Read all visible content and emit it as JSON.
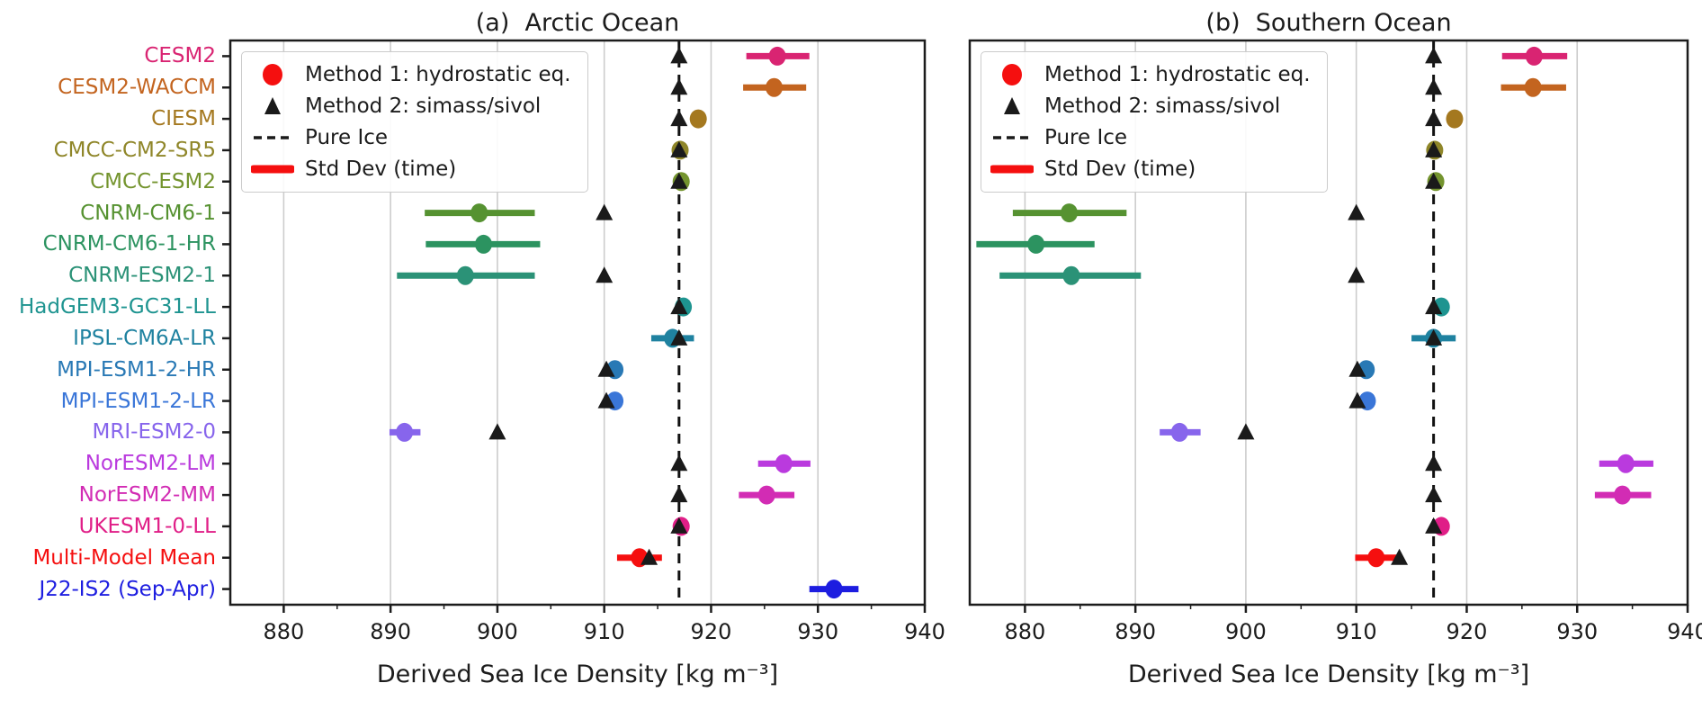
{
  "chart_data": {
    "type": "scatter",
    "xlabel": "Derived Sea Ice Density [kg m⁻³]",
    "xlim": [
      875,
      940
    ],
    "xticks": [
      880,
      890,
      900,
      910,
      920,
      930,
      940
    ],
    "minor_ticks": [
      885,
      895,
      905,
      915,
      925,
      935
    ],
    "grid": true,
    "grid_color": "#cccccc",
    "pure_ice_value": 917,
    "pure_ice_line_color": "#111111",
    "legend_position": "upper left",
    "legend": {
      "items": [
        {
          "marker": "circle",
          "color": "#f50f0f",
          "label": "Method 1: hydrostatic eq."
        },
        {
          "marker": "triangle",
          "color": "#1a1a1a",
          "label": "Method 2: simass/sivol"
        },
        {
          "marker": "dashed-line",
          "color": "#1a1a1a",
          "label": "Pure Ice"
        },
        {
          "marker": "thick-line",
          "color": "#f50f0f",
          "label": "Std Dev (time)"
        }
      ]
    },
    "panels": [
      {
        "id": "arctic",
        "title": "(a)  Arctic Ocean"
      },
      {
        "id": "southern",
        "title": "(b)  Southern Ocean"
      }
    ],
    "models": [
      {
        "name": "CESM2",
        "color": "#d92472",
        "arctic": {
          "method1": 926.2,
          "std": [
            923.3,
            929.2
          ],
          "method2": 917
        },
        "southern": {
          "method1": 926.1,
          "std": [
            923.2,
            929.1
          ],
          "method2": 917
        }
      },
      {
        "name": "CESM2-WACCM",
        "color": "#c3641f",
        "arctic": {
          "method1": 925.9,
          "std": [
            923.0,
            928.9
          ],
          "method2": 917
        },
        "southern": {
          "method1": 926.0,
          "std": [
            923.1,
            929.0
          ],
          "method2": 917
        }
      },
      {
        "name": "CIESM",
        "color": "#a4781f",
        "arctic": {
          "method1": 918.8,
          "std": null,
          "method2": 917
        },
        "southern": {
          "method1": 918.9,
          "std": null,
          "method2": 917
        }
      },
      {
        "name": "CMCC-CM2-SR5",
        "color": "#8f8629",
        "arctic": {
          "method1": 917.1,
          "std": null,
          "method2": 917
        },
        "southern": {
          "method1": 917.1,
          "std": null,
          "method2": 917
        }
      },
      {
        "name": "CMCC-ESM2",
        "color": "#74942e",
        "arctic": {
          "method1": 917.2,
          "std": null,
          "method2": 917
        },
        "southern": {
          "method1": 917.2,
          "std": null,
          "method2": 917
        }
      },
      {
        "name": "CNRM-CM6-1",
        "color": "#569231",
        "arctic": {
          "method1": 898.3,
          "std": [
            893.2,
            903.5
          ],
          "method2": 910
        },
        "southern": {
          "method1": 884.0,
          "std": [
            878.9,
            889.2
          ],
          "method2": 910
        }
      },
      {
        "name": "CNRM-CM6-1-HR",
        "color": "#2c9360",
        "arctic": {
          "method1": 898.7,
          "std": [
            893.3,
            904.0
          ],
          "method2": null
        },
        "southern": {
          "method1": 881.0,
          "std": [
            875.6,
            886.3
          ],
          "method2": null
        }
      },
      {
        "name": "CNRM-ESM2-1",
        "color": "#2b9277",
        "arctic": {
          "method1": 897.0,
          "std": [
            890.6,
            903.5
          ],
          "method2": 910
        },
        "southern": {
          "method1": 884.2,
          "std": [
            877.7,
            890.5
          ],
          "method2": 910
        }
      },
      {
        "name": "HadGEM3-GC31-LL",
        "color": "#1e9490",
        "arctic": {
          "method1": 917.4,
          "std": null,
          "method2": 917
        },
        "southern": {
          "method1": 917.7,
          "std": null,
          "method2": 917
        }
      },
      {
        "name": "IPSL-CM6A-LR",
        "color": "#1f82a0",
        "arctic": {
          "method1": 916.4,
          "std": [
            914.4,
            918.4
          ],
          "method2": 917
        },
        "southern": {
          "method1": 917.0,
          "std": [
            915.0,
            919.0
          ],
          "method2": 917
        }
      },
      {
        "name": "MPI-ESM1-2-HR",
        "color": "#2979b5",
        "arctic": {
          "method1": 911.0,
          "std": null,
          "method2": 910.2
        },
        "southern": {
          "method1": 910.9,
          "std": null,
          "method2": 910.1
        }
      },
      {
        "name": "MPI-ESM1-2-LR",
        "color": "#3a76d8",
        "arctic": {
          "method1": 911.0,
          "std": null,
          "method2": 910.2
        },
        "southern": {
          "method1": 911.0,
          "std": null,
          "method2": 910.1
        }
      },
      {
        "name": "MRI-ESM2-0",
        "color": "#8765ec",
        "arctic": {
          "method1": 891.3,
          "std": [
            889.9,
            892.8
          ],
          "method2": 900
        },
        "southern": {
          "method1": 894.0,
          "std": [
            892.2,
            895.9
          ],
          "method2": 900
        }
      },
      {
        "name": "NorESM2-LM",
        "color": "#ba3ade",
        "arctic": {
          "method1": 926.8,
          "std": [
            924.4,
            929.3
          ],
          "method2": 917
        },
        "southern": {
          "method1": 934.4,
          "std": [
            932.0,
            936.9
          ],
          "method2": 917
        }
      },
      {
        "name": "NorESM2-MM",
        "color": "#d22cb4",
        "arctic": {
          "method1": 925.2,
          "std": [
            922.6,
            927.8
          ],
          "method2": 917
        },
        "southern": {
          "method1": 934.1,
          "std": [
            931.6,
            936.7
          ],
          "method2": 917
        }
      },
      {
        "name": "UKESM1-0-LL",
        "color": "#e01e87",
        "arctic": {
          "method1": 917.2,
          "std": null,
          "method2": 917
        },
        "southern": {
          "method1": 917.7,
          "std": null,
          "method2": 917
        }
      },
      {
        "name": "Multi-Model Mean",
        "color": "#f50f0f",
        "arctic": {
          "method1": 913.3,
          "std": [
            911.2,
            915.4
          ],
          "method2": 914.2
        },
        "southern": {
          "method1": 911.8,
          "std": [
            909.9,
            913.8
          ],
          "method2": 913.9
        }
      },
      {
        "name": "J22-IS2 (Sep-Apr)",
        "color": "#1d1de0",
        "arctic": {
          "method1": 931.5,
          "std": [
            929.2,
            933.8
          ],
          "method2": null
        },
        "southern": null
      }
    ]
  }
}
